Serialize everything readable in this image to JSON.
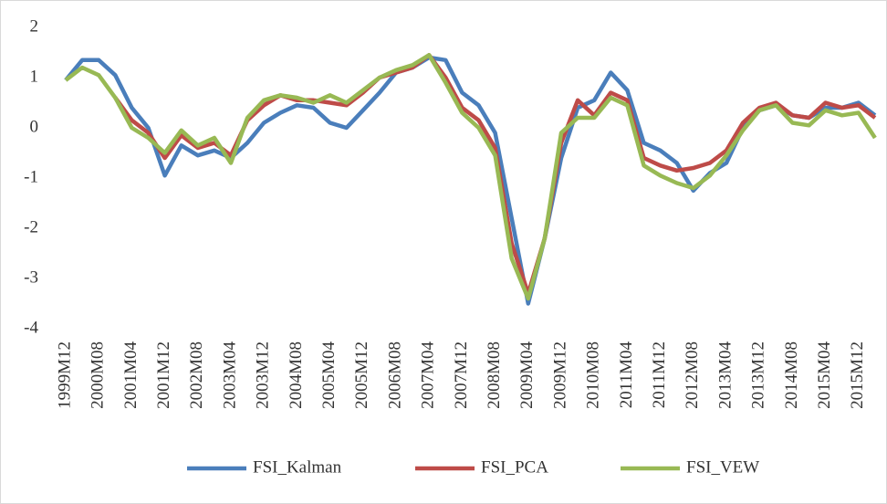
{
  "chart_data": {
    "type": "line",
    "categories": [
      "1999M12",
      null,
      "2000M08",
      null,
      "2001M04",
      null,
      "2001M12",
      null,
      "2002M08",
      null,
      "2003M04",
      null,
      "2003M12",
      null,
      "2004M08",
      null,
      "2005M04",
      null,
      "2005M12",
      null,
      "2006M08",
      null,
      "2007M04",
      null,
      "2007M12",
      null,
      "2008M08",
      null,
      "2009M04",
      null,
      "2009M12",
      null,
      "2010M08",
      null,
      "2011M04",
      null,
      "2011M12",
      null,
      "2012M08",
      null,
      "2013M04",
      null,
      "2013M12",
      null,
      "2014M08",
      null,
      "2015M04",
      null,
      "2015M12",
      null
    ],
    "series": [
      {
        "name": "FSI_Kalman",
        "color": "#4a7ebb",
        "values": [
          0.95,
          1.35,
          1.35,
          1.05,
          0.4,
          0.0,
          -0.95,
          -0.35,
          -0.55,
          -0.45,
          -0.6,
          -0.3,
          0.1,
          0.3,
          0.45,
          0.4,
          0.1,
          0.0,
          0.35,
          0.7,
          1.1,
          1.2,
          1.4,
          1.35,
          0.7,
          0.45,
          -0.1,
          -1.8,
          -3.5,
          -2.2,
          -0.6,
          0.4,
          0.55,
          1.1,
          0.75,
          -0.3,
          -0.45,
          -0.7,
          -1.25,
          -0.9,
          -0.7,
          0.0,
          0.35,
          0.45,
          0.25,
          0.2,
          0.4,
          0.4,
          0.5,
          0.25
        ]
      },
      {
        "name": "FSI_PCA",
        "color": "#be4b48",
        "values": [
          null,
          null,
          null,
          0.6,
          0.15,
          -0.1,
          -0.6,
          -0.15,
          -0.4,
          -0.3,
          -0.55,
          0.15,
          0.45,
          0.65,
          0.55,
          0.55,
          0.5,
          0.45,
          0.7,
          1.0,
          1.1,
          1.2,
          1.45,
          1.0,
          0.4,
          0.15,
          -0.4,
          -2.3,
          -3.3,
          -2.2,
          -0.3,
          0.55,
          0.25,
          0.7,
          0.55,
          -0.6,
          -0.75,
          -0.85,
          -0.8,
          -0.7,
          -0.45,
          0.1,
          0.4,
          0.5,
          0.25,
          0.2,
          0.5,
          0.4,
          0.45,
          0.2
        ]
      },
      {
        "name": "FSI_VEW",
        "color": "#98b954",
        "values": [
          0.95,
          1.2,
          1.05,
          0.6,
          0.0,
          -0.2,
          -0.5,
          -0.05,
          -0.35,
          -0.2,
          -0.7,
          0.2,
          0.55,
          0.65,
          0.6,
          0.5,
          0.65,
          0.5,
          0.75,
          1.0,
          1.15,
          1.25,
          1.45,
          0.9,
          0.3,
          0.0,
          -0.55,
          -2.6,
          -3.4,
          -2.2,
          -0.1,
          0.2,
          0.2,
          0.6,
          0.45,
          -0.75,
          -0.95,
          -1.1,
          -1.2,
          -0.95,
          -0.55,
          -0.05,
          0.35,
          0.45,
          0.1,
          0.05,
          0.35,
          0.25,
          0.3,
          -0.2
        ]
      }
    ],
    "ylim": [
      -4,
      2
    ],
    "yticks": [
      -4,
      -3,
      -2,
      -1,
      0,
      1,
      2
    ],
    "legend": "bottom",
    "grid": false
  }
}
